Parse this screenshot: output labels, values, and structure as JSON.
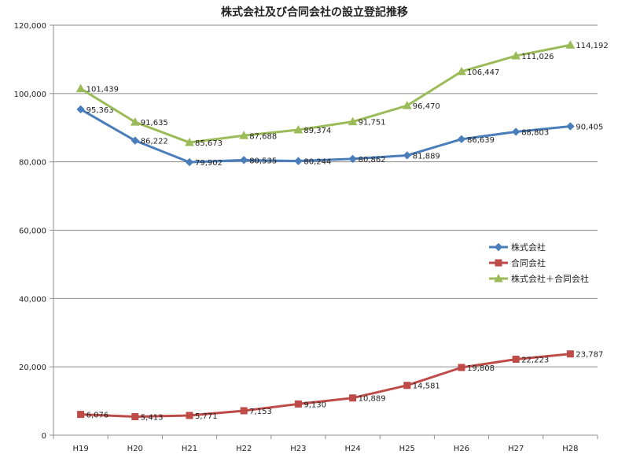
{
  "chart_data": {
    "type": "line",
    "title": "株式会社及び合同会社の設立登記推移",
    "categories": [
      "H19",
      "H20",
      "H21",
      "H22",
      "H23",
      "H24",
      "H25",
      "H26",
      "H27",
      "H28"
    ],
    "y_tick_labels": [
      "0",
      "20,000",
      "40,000",
      "60,000",
      "80,000",
      "100,000",
      "120,000"
    ],
    "ylim": [
      0,
      120000
    ],
    "grid": true,
    "legend_position": "right",
    "series": [
      {
        "name": "株式会社",
        "color": "#4a7ebb",
        "marker": "diamond",
        "values": [
          95363,
          86222,
          79902,
          80535,
          80244,
          80862,
          81889,
          86639,
          88803,
          90405
        ],
        "labels": [
          "95,363",
          "86,222",
          "79,902",
          "80,535",
          "80,244",
          "80,862",
          "81,889",
          "86,639",
          "88,803",
          "90,405"
        ]
      },
      {
        "name": "合同会社",
        "color": "#be4b48",
        "marker": "square",
        "values": [
          6076,
          5413,
          5771,
          7153,
          9130,
          10889,
          14581,
          19808,
          22223,
          23787
        ],
        "labels": [
          "6,076",
          "5,413",
          "5,771",
          "7,153",
          "9,130",
          "10,889",
          "14,581",
          "19,808",
          "22,223",
          "23,787"
        ]
      },
      {
        "name": "株式会社＋合同会社",
        "color": "#9bbb59",
        "marker": "triangle",
        "values": [
          101439,
          91635,
          85673,
          87688,
          89374,
          91751,
          96470,
          106447,
          111026,
          114192
        ],
        "labels": [
          "101,439",
          "91,635",
          "85,673",
          "87,688",
          "89,374",
          "91,751",
          "96,470",
          "106,447",
          "111,026",
          "114,192"
        ]
      }
    ]
  }
}
